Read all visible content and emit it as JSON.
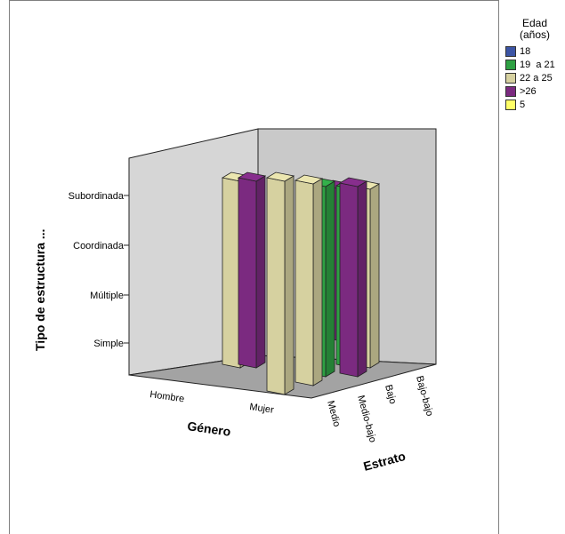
{
  "chart_data": {
    "type": "bar",
    "projection": "3d",
    "ylabel": "Tipo de estructura ...",
    "xlabel": "Género",
    "zlabel": "Estrato",
    "y_ticks": [
      "Simple",
      "Múltiple",
      "Coordinada",
      "Subordinada"
    ],
    "x_categories": [
      "Hombre",
      "Mujer"
    ],
    "z_categories": [
      "Medio",
      "Medio-bajo",
      "Bajo",
      "Bajo-bajo"
    ],
    "legend": {
      "title": "Edad\n(años)",
      "placement": "right",
      "entries": [
        {
          "label": "18",
          "color": "#3c55a5"
        },
        {
          "label": "19  a 21",
          "color": "#2ea043"
        },
        {
          "label": "22 a 25",
          "color": "#d6d1a0"
        },
        {
          "label": ">26",
          "color": "#7b2a80"
        },
        {
          "label": "5",
          "color": "#ffff66"
        }
      ]
    },
    "bars": [
      {
        "genero": "Mujer",
        "estrato": "Medio",
        "edad": "22 a 25",
        "tipo": "Subordinada"
      },
      {
        "genero": "Mujer",
        "estrato": "Medio-bajo",
        "edad": "22 a 25",
        "tipo": "Subordinada"
      },
      {
        "genero": "Mujer",
        "estrato": "Bajo",
        "edad": "19  a 21",
        "tipo": "Subordinada"
      },
      {
        "genero": "Mujer",
        "estrato": "Bajo",
        "edad": ">26",
        "tipo": "Subordinada"
      },
      {
        "genero": "Mujer",
        "estrato": "Bajo-bajo",
        "edad": "19  a 21",
        "tipo": "Subordinada"
      },
      {
        "genero": "Mujer",
        "estrato": "Bajo-bajo",
        "edad": "22 a 25",
        "tipo": "Subordinada"
      },
      {
        "genero": "Hombre",
        "estrato": "Medio",
        "edad": "22 a 25",
        "tipo": "Subordinada"
      },
      {
        "genero": "Hombre",
        "estrato": "Medio",
        "edad": ">26",
        "tipo": "Subordinada"
      },
      {
        "genero": "Hombre",
        "estrato": "Bajo-bajo",
        "edad": "22 a 25",
        "tipo": "Subordinada"
      },
      {
        "genero": "Hombre",
        "estrato": "Bajo-bajo",
        "edad": ">26",
        "tipo": "Subordinada"
      }
    ]
  }
}
